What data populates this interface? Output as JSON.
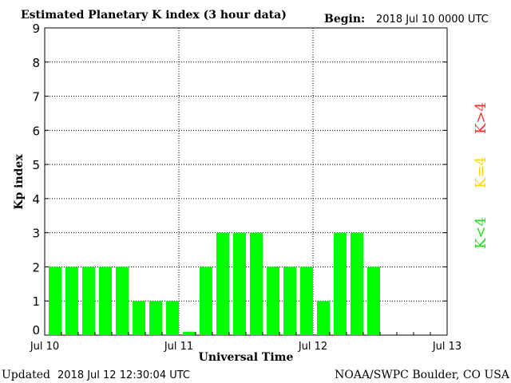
{
  "header": {
    "title": "Estimated Planetary K index (3 hour data)",
    "begin_label": "Begin:",
    "begin_value": "2018 Jul 10 0000 UTC"
  },
  "footer": {
    "updated_label": "Updated",
    "updated_value": "2018 Jul 12 12:30:04 UTC",
    "source": "NOAA/SWPC Boulder, CO USA"
  },
  "legend": {
    "high": {
      "label": "K>4",
      "color": "#ff3030"
    },
    "equal": {
      "label": "K=4",
      "color": "#ffd700"
    },
    "low": {
      "label": "K<4",
      "color": "#22dd22"
    }
  },
  "chart_data": {
    "type": "bar",
    "title": "Estimated Planetary K index (3 hour data)",
    "xlabel": "Universal Time",
    "ylabel": "Kp index",
    "xtick_labels": [
      "Jul 10",
      "Jul 11",
      "Jul 12",
      "Jul 13"
    ],
    "ytick_labels": [
      "0",
      "1",
      "2",
      "3",
      "4",
      "5",
      "6",
      "7",
      "8",
      "9"
    ],
    "ylim": [
      0,
      9
    ],
    "grid": true,
    "bar_color": "#00ff00",
    "x": [
      "2018-07-10 00:00",
      "2018-07-10 03:00",
      "2018-07-10 06:00",
      "2018-07-10 09:00",
      "2018-07-10 12:00",
      "2018-07-10 15:00",
      "2018-07-10 18:00",
      "2018-07-10 21:00",
      "2018-07-11 00:00",
      "2018-07-11 03:00",
      "2018-07-11 06:00",
      "2018-07-11 09:00",
      "2018-07-11 12:00",
      "2018-07-11 15:00",
      "2018-07-11 18:00",
      "2018-07-11 21:00",
      "2018-07-12 00:00",
      "2018-07-12 03:00",
      "2018-07-12 06:00",
      "2018-07-12 09:00"
    ],
    "values": [
      2,
      2,
      2,
      2,
      2,
      1,
      1,
      1,
      0.1,
      2,
      3,
      3,
      3,
      2,
      2,
      2,
      1,
      3,
      3,
      2
    ]
  }
}
